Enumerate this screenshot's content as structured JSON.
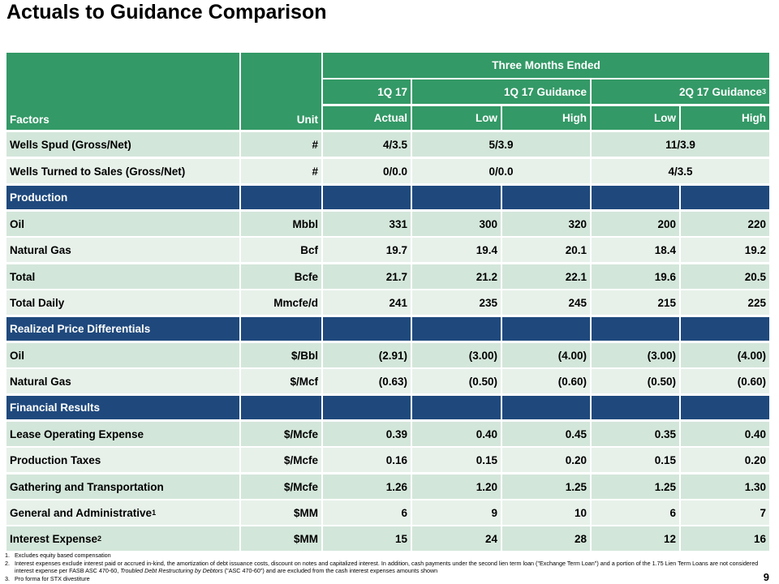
{
  "title": "Actuals to Guidance Comparison",
  "page_number": "9",
  "colors": {
    "header_green": "#339966",
    "section_navy": "#1f497d",
    "row_light_a": "#d3e6da",
    "row_light_b": "#e7f1ea"
  },
  "header": {
    "factors": "Factors",
    "unit": "Unit",
    "three_months_ended": "Three Months Ended",
    "period_1q17": "1Q 17",
    "period_1q17_guidance": "1Q 17 Guidance",
    "period_2q17_guidance": "2Q 17 Guidance",
    "period_2q17_guidance_sup": "3",
    "actual": "Actual",
    "low_1": "Low",
    "high_1": "High",
    "low_2": "Low",
    "high_2": "High"
  },
  "wells_spud": {
    "label": "Wells Spud (Gross/Net)",
    "unit": "#",
    "actual": "4/3.5",
    "g1q": "5/3.9",
    "g2q": "11/3.9"
  },
  "wells_tts": {
    "label": "Wells Turned to Sales (Gross/Net)",
    "unit": "#",
    "actual": "0/0.0",
    "g1q": "0/0.0",
    "g2q": "4/3.5"
  },
  "sections": {
    "production": "Production",
    "price_diff": "Realized Price Differentials",
    "financial": "Financial Results"
  },
  "rows": [
    {
      "label": "Oil",
      "sup": "",
      "unit": "Mbbl",
      "actual": "331",
      "l1": "300",
      "h1": "320",
      "l2": "200",
      "h2": "220"
    },
    {
      "label": "Natural Gas",
      "sup": "",
      "unit": "Bcf",
      "actual": "19.7",
      "l1": "19.4",
      "h1": "20.1",
      "l2": "18.4",
      "h2": "19.2"
    },
    {
      "label": "Total",
      "sup": "",
      "unit": "Bcfe",
      "actual": "21.7",
      "l1": "21.2",
      "h1": "22.1",
      "l2": "19.6",
      "h2": "20.5"
    },
    {
      "label": "Total Daily",
      "sup": "",
      "unit": "Mmcfe/d",
      "actual": "241",
      "l1": "235",
      "h1": "245",
      "l2": "215",
      "h2": "225"
    },
    {
      "label": "Oil",
      "sup": "",
      "unit": "$/Bbl",
      "actual": "(2.91)",
      "l1": "(3.00)",
      "h1": "(4.00)",
      "l2": "(3.00)",
      "h2": "(4.00)"
    },
    {
      "label": "Natural Gas",
      "sup": "",
      "unit": "$/Mcf",
      "actual": "(0.63)",
      "l1": "(0.50)",
      "h1": "(0.60)",
      "l2": "(0.50)",
      "h2": "(0.60)"
    },
    {
      "label": "Lease Operating Expense",
      "sup": "",
      "unit": "$/Mcfe",
      "actual": "0.39",
      "l1": "0.40",
      "h1": "0.45",
      "l2": "0.35",
      "h2": "0.40"
    },
    {
      "label": "Production Taxes",
      "sup": "",
      "unit": "$/Mcfe",
      "actual": "0.16",
      "l1": "0.15",
      "h1": "0.20",
      "l2": "0.15",
      "h2": "0.20"
    },
    {
      "label": "Gathering and Transportation",
      "sup": "",
      "unit": "$/Mcfe",
      "actual": "1.26",
      "l1": "1.20",
      "h1": "1.25",
      "l2": "1.25",
      "h2": "1.30"
    },
    {
      "label": "General and Administrative",
      "sup": "1",
      "unit": "$MM",
      "actual": "6",
      "l1": "9",
      "h1": "10",
      "l2": "6",
      "h2": "7"
    },
    {
      "label": "Interest Expense",
      "sup": "2",
      "unit": "$MM",
      "actual": "15",
      "l1": "24",
      "h1": "28",
      "l2": "12",
      "h2": "16"
    }
  ],
  "footnotes": [
    {
      "num": "1.",
      "text": "Excludes equity based compensation"
    },
    {
      "num": "2.",
      "text_a": "Interest expenses exclude interest paid or accrued in-kind, the amortization of debt issuance costs, discount on notes and capitalized interest. In addition, cash payments under the second lien term loan (\"Exchange Term Loan\") and a portion of the 1.75 Lien Term Loans are not considered interest expense per FASB ASC 470-60, ",
      "text_italic": "Troubled Debt Restructuring by Debtors",
      "text_b": " (\"ASC 470-60\") and are excluded from the cash interest expenses amounts shown"
    },
    {
      "num": "3.",
      "text": "Pro forma for STX divestiture"
    }
  ]
}
